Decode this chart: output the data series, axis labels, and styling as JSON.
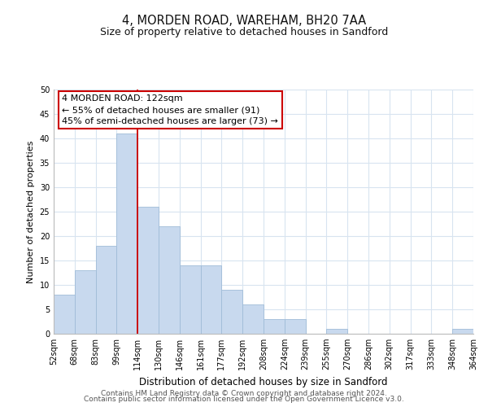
{
  "title": "4, MORDEN ROAD, WAREHAM, BH20 7AA",
  "subtitle": "Size of property relative to detached houses in Sandford",
  "xlabel": "Distribution of detached houses by size in Sandford",
  "ylabel": "Number of detached properties",
  "bar_values": [
    8,
    13,
    18,
    41,
    26,
    22,
    14,
    14,
    9,
    6,
    3,
    3,
    0,
    1,
    0,
    0,
    0,
    0,
    0,
    1
  ],
  "bin_labels": [
    "52sqm",
    "68sqm",
    "83sqm",
    "99sqm",
    "114sqm",
    "130sqm",
    "146sqm",
    "161sqm",
    "177sqm",
    "192sqm",
    "208sqm",
    "224sqm",
    "239sqm",
    "255sqm",
    "270sqm",
    "286sqm",
    "302sqm",
    "317sqm",
    "333sqm",
    "348sqm",
    "364sqm"
  ],
  "bar_color": "#c8d9ee",
  "bar_edge_color": "#a0bcd8",
  "vline_color": "#cc0000",
  "annotation_text": "4 MORDEN ROAD: 122sqm\n← 55% of detached houses are smaller (91)\n45% of semi-detached houses are larger (73) →",
  "annotation_box_color": "#ffffff",
  "annotation_box_edge": "#cc0000",
  "ylim": [
    0,
    50
  ],
  "yticks": [
    0,
    5,
    10,
    15,
    20,
    25,
    30,
    35,
    40,
    45,
    50
  ],
  "footer_line1": "Contains HM Land Registry data © Crown copyright and database right 2024.",
  "footer_line2": "Contains public sector information licensed under the Open Government Licence v3.0.",
  "bg_color": "#ffffff",
  "grid_color": "#d8e4f0",
  "title_fontsize": 10.5,
  "subtitle_fontsize": 9,
  "xlabel_fontsize": 8.5,
  "ylabel_fontsize": 8,
  "annotation_fontsize": 8,
  "footer_fontsize": 6.5,
  "tick_fontsize": 7
}
